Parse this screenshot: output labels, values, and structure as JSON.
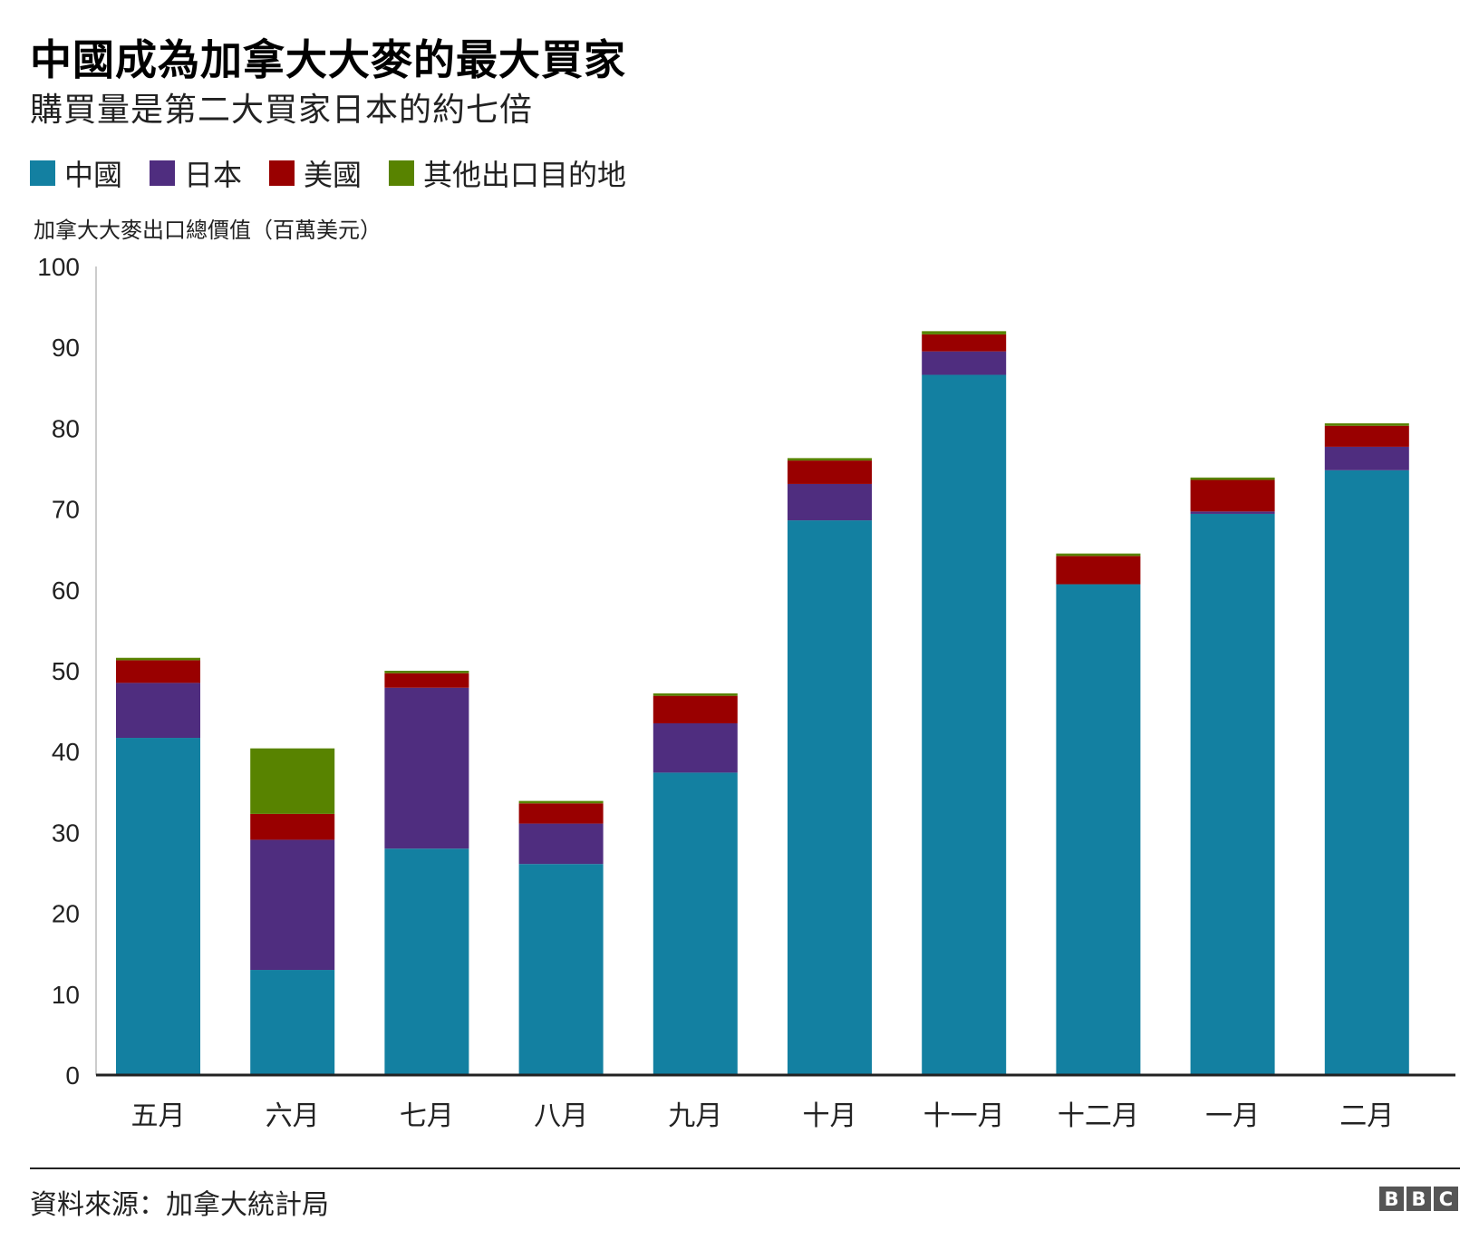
{
  "title": "中國成為加拿大大麥的最大買家",
  "subtitle": "購買量是第二大買家日本的約七倍",
  "legend": [
    {
      "label": "中國",
      "color": "#1380A1"
    },
    {
      "label": "日本",
      "color": "#4F2D7F"
    },
    {
      "label": "美國",
      "color": "#990000"
    },
    {
      "label": "其他出口目的地",
      "color": "#588300"
    }
  ],
  "source": "資料來源：加拿大統計局",
  "logo": [
    "B",
    "B",
    "C"
  ],
  "chart_data": {
    "type": "bar",
    "stacked": true,
    "title": "中國成為加拿大大麥的最大買家",
    "subtitle": "購買量是第二大買家日本的約七倍",
    "ylabel": "加拿大大麥出口總價值（百萬美元）",
    "xlabel": "",
    "ylim": [
      0,
      100
    ],
    "yticks": [
      0,
      10,
      20,
      30,
      40,
      50,
      60,
      70,
      80,
      90,
      100
    ],
    "grid": false,
    "legend_position": "top-left",
    "categories": [
      "五月",
      "六月",
      "七月",
      "八月",
      "九月",
      "十月",
      "十一月",
      "十二月",
      "一月",
      "二月"
    ],
    "series": [
      {
        "name": "中國",
        "color": "#1380A1",
        "values": [
          41.7,
          13.0,
          28.0,
          26.1,
          37.4,
          68.6,
          86.6,
          60.7,
          69.4,
          74.8
        ]
      },
      {
        "name": "日本",
        "color": "#4F2D7F",
        "values": [
          6.8,
          16.1,
          19.9,
          5.0,
          6.1,
          4.5,
          2.9,
          0.0,
          0.3,
          2.9
        ]
      },
      {
        "name": "美國",
        "color": "#990000",
        "values": [
          2.8,
          3.2,
          1.8,
          2.5,
          3.4,
          2.9,
          2.1,
          3.5,
          3.9,
          2.6
        ]
      },
      {
        "name": "其他出口目的地",
        "color": "#588300",
        "values": [
          0.3,
          8.1,
          0.3,
          0.3,
          0.3,
          0.3,
          0.4,
          0.3,
          0.3,
          0.3
        ]
      }
    ]
  }
}
